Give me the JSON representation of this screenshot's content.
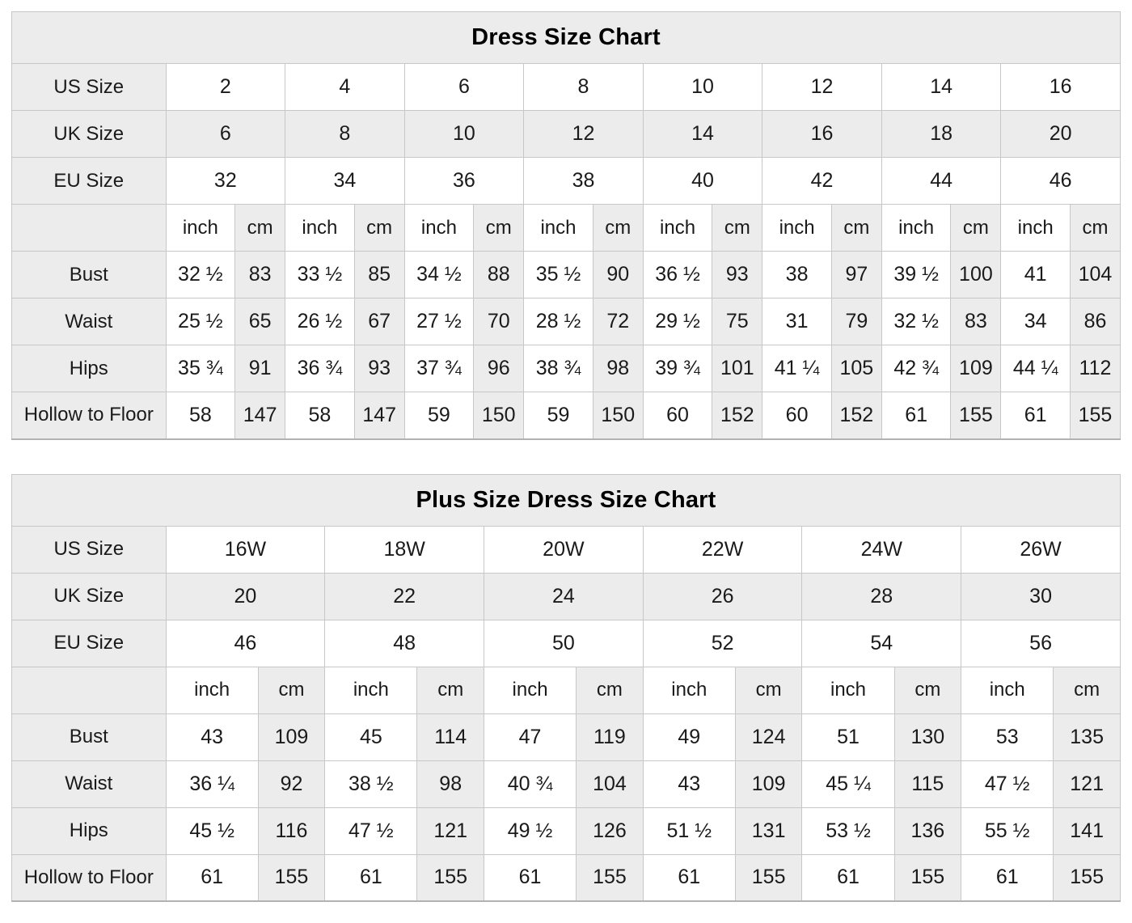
{
  "style": {
    "shaded_bg": "#ececec",
    "white_bg": "#ffffff",
    "grid_color": "#c7c7c7",
    "outer_border_color": "#b2b2b2",
    "text_color": "#1a1a1a"
  },
  "chart_data": [
    {
      "type": "table",
      "title": "Dress Size Chart",
      "size_rows": [
        {
          "label": "US Size",
          "shaded": false,
          "values": [
            "2",
            "4",
            "6",
            "8",
            "10",
            "12",
            "14",
            "16"
          ]
        },
        {
          "label": "UK Size",
          "shaded": true,
          "values": [
            "6",
            "8",
            "10",
            "12",
            "14",
            "16",
            "18",
            "20"
          ]
        },
        {
          "label": "EU Size",
          "shaded": false,
          "values": [
            "32",
            "34",
            "36",
            "38",
            "40",
            "42",
            "44",
            "46"
          ]
        }
      ],
      "unit_row": {
        "label": "",
        "units": [
          "inch",
          "cm"
        ]
      },
      "measurement_rows": [
        {
          "label": "Bust",
          "inch": [
            "32 ½",
            "33 ½",
            "34 ½",
            "35 ½",
            "36 ½",
            "38",
            "39 ½",
            "41"
          ],
          "cm": [
            "83",
            "85",
            "88",
            "90",
            "93",
            "97",
            "100",
            "104"
          ]
        },
        {
          "label": "Waist",
          "inch": [
            "25 ½",
            "26 ½",
            "27 ½",
            "28 ½",
            "29 ½",
            "31",
            "32 ½",
            "34"
          ],
          "cm": [
            "65",
            "67",
            "70",
            "72",
            "75",
            "79",
            "83",
            "86"
          ]
        },
        {
          "label": "Hips",
          "inch": [
            "35 ¾",
            "36 ¾",
            "37 ¾",
            "38 ¾",
            "39 ¾",
            "41 ¼",
            "42 ¾",
            "44 ¼"
          ],
          "cm": [
            "91",
            "93",
            "96",
            "98",
            "101",
            "105",
            "109",
            "112"
          ]
        },
        {
          "label": "Hollow to Floor",
          "inch": [
            "58",
            "58",
            "59",
            "59",
            "60",
            "60",
            "61",
            "61"
          ],
          "cm": [
            "147",
            "147",
            "150",
            "150",
            "152",
            "152",
            "155",
            "155"
          ]
        }
      ]
    },
    {
      "type": "table",
      "title": "Plus Size Dress Size Chart",
      "size_rows": [
        {
          "label": "US Size",
          "shaded": false,
          "values": [
            "16W",
            "18W",
            "20W",
            "22W",
            "24W",
            "26W"
          ]
        },
        {
          "label": "UK Size",
          "shaded": true,
          "values": [
            "20",
            "22",
            "24",
            "26",
            "28",
            "30"
          ]
        },
        {
          "label": "EU Size",
          "shaded": false,
          "values": [
            "46",
            "48",
            "50",
            "52",
            "54",
            "56"
          ]
        }
      ],
      "unit_row": {
        "label": "",
        "units": [
          "inch",
          "cm"
        ]
      },
      "measurement_rows": [
        {
          "label": "Bust",
          "inch": [
            "43",
            "45",
            "47",
            "49",
            "51",
            "53"
          ],
          "cm": [
            "109",
            "114",
            "119",
            "124",
            "130",
            "135"
          ]
        },
        {
          "label": "Waist",
          "inch": [
            "36 ¼",
            "38 ½",
            "40 ¾",
            "43",
            "45 ¼",
            "47 ½"
          ],
          "cm": [
            "92",
            "98",
            "104",
            "109",
            "115",
            "121"
          ]
        },
        {
          "label": "Hips",
          "inch": [
            "45 ½",
            "47 ½",
            "49 ½",
            "51 ½",
            "53 ½",
            "55 ½"
          ],
          "cm": [
            "116",
            "121",
            "126",
            "131",
            "136",
            "141"
          ]
        },
        {
          "label": "Hollow to Floor",
          "inch": [
            "61",
            "61",
            "61",
            "61",
            "61",
            "61"
          ],
          "cm": [
            "155",
            "155",
            "155",
            "155",
            "155",
            "155"
          ]
        }
      ]
    }
  ]
}
